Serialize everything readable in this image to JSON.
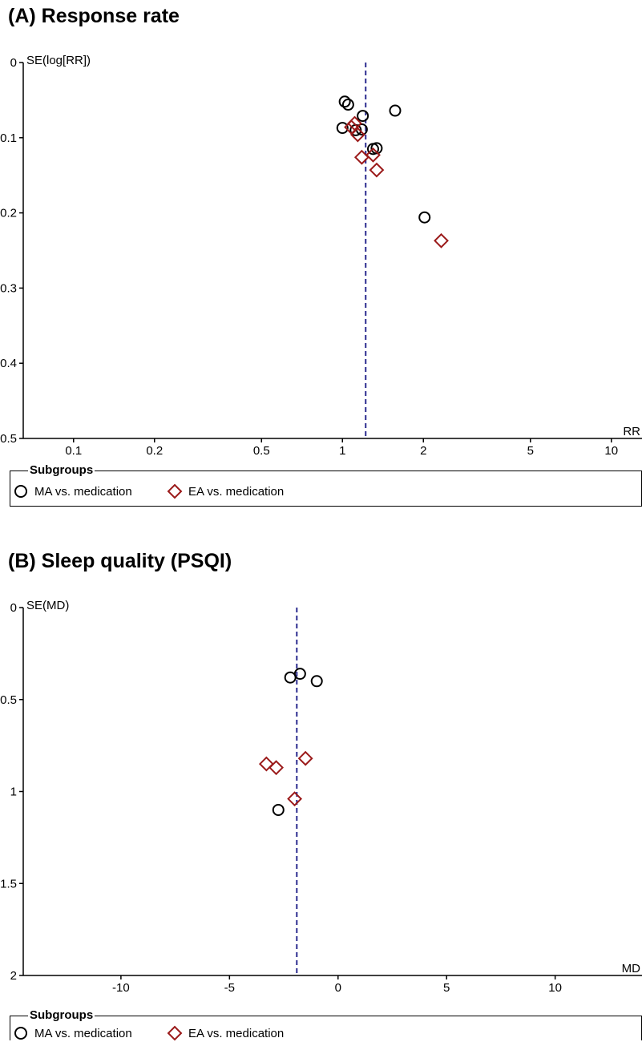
{
  "panels": [
    {
      "title": "(A) Response rate",
      "chart_data": {
        "type": "scatter",
        "title": "(A) Response rate",
        "xlabel": "RR",
        "ylabel": "SE(log[RR])",
        "xscale": "log",
        "xlim": [
          0.065,
          13
        ],
        "ylim": [
          0,
          0.5
        ],
        "y_inverted": true,
        "xticks": [
          0.1,
          0.2,
          0.5,
          1,
          2,
          5,
          10
        ],
        "xtick_labels": [
          "0.1",
          "0.2",
          "0.5",
          "1",
          "2",
          "5",
          "10"
        ],
        "yticks": [
          0,
          0.1,
          0.2,
          0.3,
          0.4,
          0.5
        ],
        "ytick_labels": [
          "0",
          "0.1",
          "0.2",
          "0.3",
          "0.4",
          "0.5"
        ],
        "reference_line": 1.22,
        "series": [
          {
            "name": "MA vs. medication",
            "marker": "circle",
            "color": "#000000",
            "points": [
              {
                "x": 1.02,
                "y": 0.052
              },
              {
                "x": 1.05,
                "y": 0.056
              },
              {
                "x": 1.57,
                "y": 0.064
              },
              {
                "x": 1.19,
                "y": 0.071
              },
              {
                "x": 1.0,
                "y": 0.087
              },
              {
                "x": 1.12,
                "y": 0.09
              },
              {
                "x": 1.18,
                "y": 0.089
              },
              {
                "x": 1.3,
                "y": 0.115
              },
              {
                "x": 1.34,
                "y": 0.114
              },
              {
                "x": 2.02,
                "y": 0.206
              }
            ]
          },
          {
            "name": "EA vs. medication",
            "marker": "diamond",
            "color": "#9b1a1a",
            "points": [
              {
                "x": 1.11,
                "y": 0.081
              },
              {
                "x": 1.08,
                "y": 0.086
              },
              {
                "x": 1.14,
                "y": 0.096
              },
              {
                "x": 1.18,
                "y": 0.126
              },
              {
                "x": 1.3,
                "y": 0.123
              },
              {
                "x": 1.34,
                "y": 0.143
              },
              {
                "x": 2.33,
                "y": 0.237
              }
            ]
          }
        ]
      },
      "legend": {
        "title": "Subgroups",
        "items": [
          "MA vs. medication",
          "EA vs. medication"
        ]
      }
    },
    {
      "title": "(B) Sleep quality (PSQI)",
      "chart_data": {
        "type": "scatter",
        "title": "(B) Sleep quality (PSQI)",
        "xlabel": "MD",
        "ylabel": "SE(MD)",
        "xscale": "linear",
        "xlim": [
          -14.5,
          14
        ],
        "ylim": [
          0,
          2
        ],
        "y_inverted": true,
        "xticks": [
          -10,
          -5,
          0,
          5,
          10
        ],
        "xtick_labels": [
          "-10",
          "-5",
          "0",
          "5",
          "10"
        ],
        "yticks": [
          0,
          0.5,
          1,
          1.5,
          2
        ],
        "ytick_labels": [
          "0",
          "0.5",
          "1",
          "1.5",
          "2"
        ],
        "reference_line": -1.9,
        "series": [
          {
            "name": "MA vs. medication",
            "marker": "circle",
            "color": "#000000",
            "points": [
              {
                "x": -2.2,
                "y": 0.38
              },
              {
                "x": -1.75,
                "y": 0.36
              },
              {
                "x": -0.98,
                "y": 0.4
              },
              {
                "x": -2.75,
                "y": 1.1
              }
            ]
          },
          {
            "name": "EA vs. medication",
            "marker": "diamond",
            "color": "#9b1a1a",
            "points": [
              {
                "x": -1.5,
                "y": 0.82
              },
              {
                "x": -3.3,
                "y": 0.85
              },
              {
                "x": -2.85,
                "y": 0.87
              },
              {
                "x": -2.0,
                "y": 1.04
              }
            ]
          }
        ]
      },
      "legend": {
        "title": "Subgroups",
        "items": [
          "MA vs. medication",
          "EA vs. medication"
        ]
      }
    }
  ],
  "colors": {
    "ma_marker": "#000000",
    "ea_marker": "#9b1a1a",
    "reference_line": "#2b2b8f"
  }
}
